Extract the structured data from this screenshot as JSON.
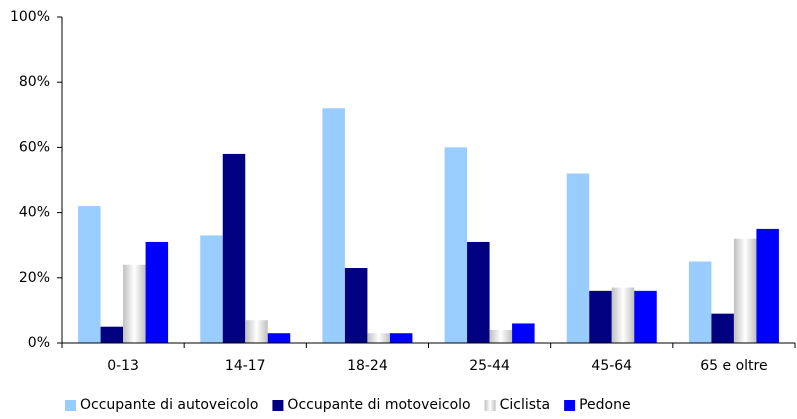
{
  "chart_data": {
    "type": "bar",
    "categories": [
      "0-13",
      "14-17",
      "18-24",
      "25-44",
      "45-64",
      "65 e oltre"
    ],
    "series": [
      {
        "name": "Occupante di autoveicolo",
        "color": "#99ccff",
        "values": [
          42,
          33,
          72,
          60,
          52,
          25
        ]
      },
      {
        "name": "Occupante di motoveicolo",
        "color": "#000080",
        "values": [
          5,
          58,
          23,
          31,
          16,
          9
        ]
      },
      {
        "name": "Ciclista",
        "color": "#c0c0c0",
        "values": [
          24,
          7,
          3,
          4,
          17,
          32
        ]
      },
      {
        "name": "Pedone",
        "color": "#0000ff",
        "values": [
          31,
          3,
          3,
          6,
          16,
          35
        ]
      }
    ],
    "ylim": [
      0,
      100
    ],
    "yticks": [
      {
        "value": 0,
        "label": "0%"
      },
      {
        "value": 20,
        "label": "20%"
      },
      {
        "value": 40,
        "label": "40%"
      },
      {
        "value": 60,
        "label": "60%"
      },
      {
        "value": 80,
        "label": "80%"
      },
      {
        "value": 100,
        "label": "100%"
      }
    ],
    "grid": false,
    "legend": "bottom"
  }
}
